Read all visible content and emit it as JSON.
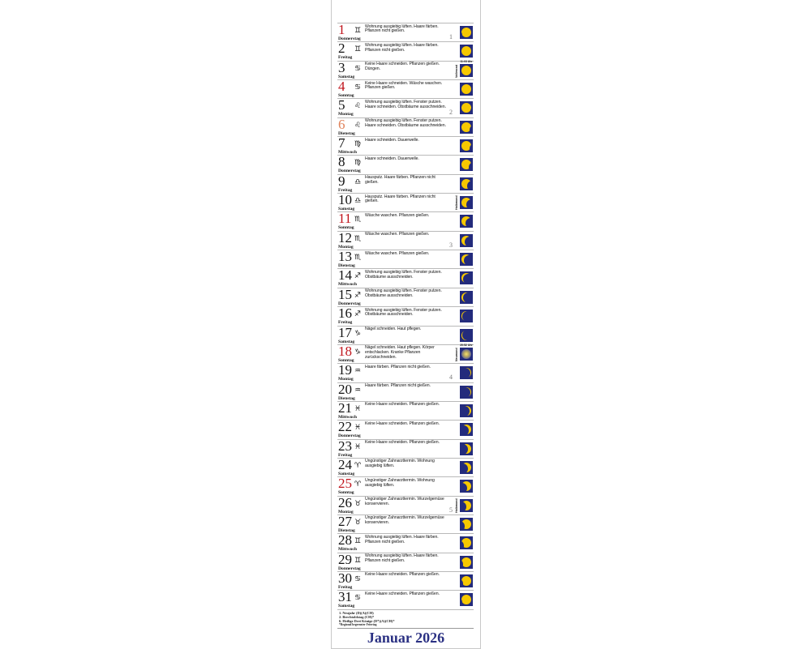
{
  "calendar": {
    "month_title": "Januar 2026",
    "colors": {
      "sunday_red": "#c0141c",
      "regional_holiday": "#e0825a",
      "moon_bg": "#232b7c",
      "moon_lit": "#f6c800",
      "title": "#2b3183"
    },
    "days": [
      {
        "day": "1",
        "weekday": "Donnerstag",
        "color": "red",
        "zodiac": "gemini-icon",
        "glyph": "♊",
        "text": "Wohnung ausgiebig lüften. Haare färben. Pflanzen nicht gießen.",
        "week": "1",
        "moon": 0.97,
        "phase": "waxing"
      },
      {
        "day": "2",
        "weekday": "Freitag",
        "color": "",
        "zodiac": "gemini-icon",
        "glyph": "♊",
        "text": "Wohnung ausgiebig lüften. Haare färben. Pflanzen nicht gießen.",
        "moon": 0.99,
        "phase": "waxing"
      },
      {
        "day": "3",
        "weekday": "Samstag",
        "color": "",
        "zodiac": "cancer-icon",
        "glyph": "♋",
        "text": "Keine Haare schneiden. Pflanzen gießen. Düngen.",
        "moon": 1,
        "phase": "full",
        "moon_label": "Vollmond",
        "moon_time": "11:03 Uhr"
      },
      {
        "day": "4",
        "weekday": "Sonntag",
        "color": "red",
        "zodiac": "cancer-icon",
        "glyph": "♋",
        "text": "Keine Haare schneiden. Wäsche waschen. Pflanzen gießen.",
        "moon": 0.98,
        "phase": "waning"
      },
      {
        "day": "5",
        "weekday": "Montag",
        "color": "",
        "zodiac": "leo-icon",
        "glyph": "♌",
        "text": "Wohnung ausgiebig lüften. Fenster putzen. Haare schneiden. Obstbäume ausschneiden.",
        "week": "2",
        "moon": 0.94,
        "phase": "waning"
      },
      {
        "day": "6",
        "weekday": "Dienstag",
        "color": "orange",
        "zodiac": "leo-icon",
        "glyph": "♌",
        "text": "Wohnung ausgiebig lüften. Fenster putzen. Haare schneiden. Obstbäume ausschneiden.",
        "moon": 0.88,
        "phase": "waning"
      },
      {
        "day": "7",
        "weekday": "Mittwoch",
        "color": "",
        "zodiac": "virgo-icon",
        "glyph": "♍",
        "text": "Haare schneiden. Dauerwelle.",
        "moon": 0.8,
        "phase": "waning"
      },
      {
        "day": "8",
        "weekday": "Donnerstag",
        "color": "",
        "zodiac": "virgo-icon",
        "glyph": "♍",
        "text": "Haare schneiden. Dauerwelle.",
        "moon": 0.71,
        "phase": "waning"
      },
      {
        "day": "9",
        "weekday": "Freitag",
        "color": "",
        "zodiac": "libra-icon",
        "glyph": "♎",
        "text": "Hausputz. Haare färben. Pflanzen nicht gießen.",
        "moon": 0.6,
        "phase": "waning"
      },
      {
        "day": "10",
        "weekday": "Samstag",
        "color": "",
        "zodiac": "libra-icon",
        "glyph": "♎",
        "text": "Hausputz. Haare färben. Pflanzen nicht gießen.",
        "moon": 0.5,
        "phase": "waning",
        "moon_label": "Halbmond"
      },
      {
        "day": "11",
        "weekday": "Sonntag",
        "color": "red",
        "zodiac": "scorpio-icon",
        "glyph": "♏",
        "text": "Wäsche waschen. Pflanzen gießen.",
        "moon": 0.4,
        "phase": "waning"
      },
      {
        "day": "12",
        "weekday": "Montag",
        "color": "",
        "zodiac": "scorpio-icon",
        "glyph": "♏",
        "text": "Wäsche waschen. Pflanzen gießen.",
        "week": "3",
        "moon": 0.31,
        "phase": "waning"
      },
      {
        "day": "13",
        "weekday": "Dienstag",
        "color": "",
        "zodiac": "scorpio-icon",
        "glyph": "♏",
        "text": "Wäsche waschen. Pflanzen gießen.",
        "moon": 0.23,
        "phase": "waning"
      },
      {
        "day": "14",
        "weekday": "Mittwoch",
        "color": "",
        "zodiac": "sagittarius-icon",
        "glyph": "♐",
        "text": "Wohnung ausgiebig lüften. Fenster putzen. Obstbäume ausschneiden.",
        "moon": 0.16,
        "phase": "waning"
      },
      {
        "day": "15",
        "weekday": "Donnerstag",
        "color": "",
        "zodiac": "sagittarius-icon",
        "glyph": "♐",
        "text": "Wohnung ausgiebig lüften. Fenster putzen. Obstbäume ausschneiden.",
        "moon": 0.1,
        "phase": "waning"
      },
      {
        "day": "16",
        "weekday": "Freitag",
        "color": "",
        "zodiac": "sagittarius-icon",
        "glyph": "♐",
        "text": "Wohnung ausgiebig lüften. Fenster putzen. Obstbäume ausschneiden.",
        "moon": 0.06,
        "phase": "waning"
      },
      {
        "day": "17",
        "weekday": "Samstag",
        "color": "",
        "zodiac": "capricorn-icon",
        "glyph": "♑",
        "text": "Nägel schneiden. Haut pflegen.",
        "moon": 0.03,
        "phase": "waning"
      },
      {
        "day": "18",
        "weekday": "Sonntag",
        "color": "red",
        "zodiac": "capricorn-icon",
        "glyph": "♑",
        "text": "Nägel schneiden. Haut pflegen. Körper entschlacken. Kranke Pflanzen zurückschneiden.",
        "moon": 0,
        "phase": "new",
        "moon_label": "Neumond",
        "moon_time": "20:52 Uhr"
      },
      {
        "day": "19",
        "weekday": "Montag",
        "color": "",
        "zodiac": "aquarius-icon",
        "glyph": "♒",
        "text": "Haare färben. Pflanzen nicht gießen.",
        "week": "4",
        "moon": 0.04,
        "phase": "waxing"
      },
      {
        "day": "20",
        "weekday": "Dienstag",
        "color": "",
        "zodiac": "aquarius-icon",
        "glyph": "♒",
        "text": "Haare färben. Pflanzen nicht gießen.",
        "moon": 0.08,
        "phase": "waxing"
      },
      {
        "day": "21",
        "weekday": "Mittwoch",
        "color": "",
        "zodiac": "pisces-icon",
        "glyph": "♓",
        "text": "Keine Haare schneiden. Pflanzen gießen.",
        "moon": 0.13,
        "phase": "waxing"
      },
      {
        "day": "22",
        "weekday": "Donnerstag",
        "color": "",
        "zodiac": "pisces-icon",
        "glyph": "♓",
        "text": "Keine Haare schneiden. Pflanzen gießen.",
        "moon": 0.2,
        "phase": "waxing"
      },
      {
        "day": "23",
        "weekday": "Freitag",
        "color": "",
        "zodiac": "pisces-icon",
        "glyph": "♓",
        "text": "Keine Haare schneiden. Pflanzen gießen.",
        "moon": 0.27,
        "phase": "waxing"
      },
      {
        "day": "24",
        "weekday": "Samstag",
        "color": "",
        "zodiac": "aries-icon",
        "glyph": "♈",
        "text": "Ungünstiger Zahnarzttermin. Wohnung ausgiebig lüften.",
        "moon": 0.35,
        "phase": "waxing"
      },
      {
        "day": "25",
        "weekday": "Sonntag",
        "color": "red",
        "zodiac": "aries-icon",
        "glyph": "♈",
        "text": "Ungünstiger Zahnarzttermin. Wohnung ausgiebig lüften.",
        "moon": 0.44,
        "phase": "waxing"
      },
      {
        "day": "26",
        "weekday": "Montag",
        "color": "",
        "zodiac": "taurus-icon",
        "glyph": "♉",
        "text": "Ungünstiger Zahnarzttermin. Wurzelgemüse konservieren.",
        "week": "5",
        "moon": 0.52,
        "phase": "waxing",
        "moon_label": "Halbmond"
      },
      {
        "day": "27",
        "weekday": "Dienstag",
        "color": "",
        "zodiac": "taurus-icon",
        "glyph": "♉",
        "text": "Ungünstiger Zahnarzttermin. Wurzelgemüse konservieren.",
        "moon": 0.62,
        "phase": "waxing"
      },
      {
        "day": "28",
        "weekday": "Mittwoch",
        "color": "",
        "zodiac": "gemini-icon",
        "glyph": "♊",
        "text": "Wohnung ausgiebig lüften. Haare färben. Pflanzen nicht gießen.",
        "moon": 0.72,
        "phase": "waxing"
      },
      {
        "day": "29",
        "weekday": "Donnerstag",
        "color": "",
        "zodiac": "gemini-icon",
        "glyph": "♊",
        "text": "Wohnung ausgiebig lüften. Haare färben. Pflanzen nicht gießen.",
        "moon": 0.8,
        "phase": "waxing"
      },
      {
        "day": "30",
        "weekday": "Freitag",
        "color": "",
        "zodiac": "cancer-icon",
        "glyph": "♋",
        "text": "Keine Haare schneiden. Pflanzen gießen.",
        "moon": 0.88,
        "phase": "waxing"
      },
      {
        "day": "31",
        "weekday": "Samstag",
        "color": "",
        "zodiac": "cancer-icon",
        "glyph": "♋",
        "text": "Keine Haare schneiden. Pflanzen gießen.",
        "moon": 0.94,
        "phase": "waxing"
      }
    ],
    "holidays": [
      "1. Neujahr (D)(A)(CH)",
      "2. Berchtoldstag (CH)*",
      "6. Heilige Drei Könige (D*)(A)(CH)*"
    ],
    "holiday_note": "*Regional begrenzter Feiertag"
  }
}
